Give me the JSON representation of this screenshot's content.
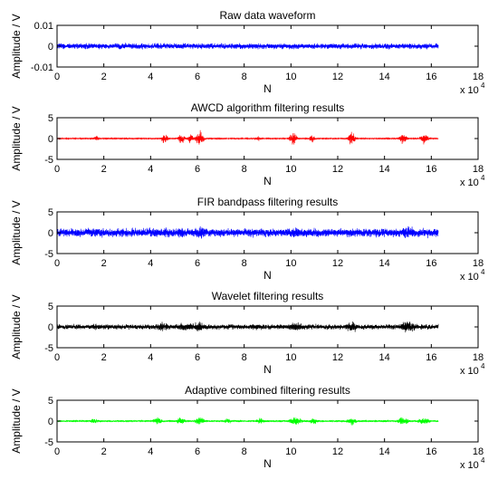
{
  "figure": {
    "x_exponent_base": "x 10",
    "x_exponent_power": "4"
  },
  "chart_data": [
    {
      "type": "line",
      "title": "Raw data waveform",
      "xlabel": "N",
      "ylabel": "Amplitude / V",
      "xlim": [
        0,
        18
      ],
      "ylim": [
        -0.01,
        0.01
      ],
      "xticks": [
        "0",
        "2",
        "4",
        "6",
        "8",
        "10",
        "12",
        "14",
        "16",
        "18"
      ],
      "yticks": [
        {
          "v": 0.01,
          "t": "0.01"
        },
        {
          "v": 0,
          "t": "0"
        },
        {
          "v": -0.01,
          "t": "-0.01"
        }
      ],
      "color": "#0000ff",
      "data_x_range": [
        0,
        16.3
      ],
      "base_amplitude": 0.0018,
      "noise": 0.0004,
      "bursts": [
        {
          "center": 1.6,
          "width": 0.35,
          "amp": 0.0012
        },
        {
          "center": 4.3,
          "width": 0.3,
          "amp": 0.0012
        },
        {
          "center": 5.3,
          "width": 0.3,
          "amp": 0.0014
        },
        {
          "center": 6.1,
          "width": 0.3,
          "amp": 0.0015
        },
        {
          "center": 10.2,
          "width": 0.35,
          "amp": 0.0014
        },
        {
          "center": 12.6,
          "width": 0.3,
          "amp": 0.0012
        },
        {
          "center": 15.0,
          "width": 0.4,
          "amp": 0.0018
        }
      ]
    },
    {
      "type": "line",
      "title": "AWCD algorithm filtering results",
      "xlabel": "N",
      "ylabel": "Amplitude / V",
      "xlim": [
        0,
        18
      ],
      "ylim": [
        -5,
        5
      ],
      "xticks": [
        "0",
        "2",
        "4",
        "6",
        "8",
        "10",
        "12",
        "14",
        "16",
        "18"
      ],
      "yticks": [
        {
          "v": 5,
          "t": "5"
        },
        {
          "v": 0,
          "t": "0"
        },
        {
          "v": -5,
          "t": "-5"
        }
      ],
      "color": "#ff0000",
      "data_x_range": [
        0,
        16.3
      ],
      "base_amplitude": 0.15,
      "noise": 0.05,
      "bursts": [
        {
          "center": 1.7,
          "width": 0.12,
          "amp": 1.0
        },
        {
          "center": 4.6,
          "width": 0.15,
          "amp": 1.6
        },
        {
          "center": 5.3,
          "width": 0.15,
          "amp": 1.7
        },
        {
          "center": 5.7,
          "width": 0.12,
          "amp": 1.5
        },
        {
          "center": 6.1,
          "width": 0.17,
          "amp": 2.6
        },
        {
          "center": 8.6,
          "width": 0.12,
          "amp": 0.9
        },
        {
          "center": 10.1,
          "width": 0.17,
          "amp": 2.0
        },
        {
          "center": 10.9,
          "width": 0.12,
          "amp": 1.4
        },
        {
          "center": 12.6,
          "width": 0.15,
          "amp": 2.4
        },
        {
          "center": 14.8,
          "width": 0.17,
          "amp": 1.8
        },
        {
          "center": 15.7,
          "width": 0.17,
          "amp": 2.0
        }
      ]
    },
    {
      "type": "line",
      "title": "FIR bandpass filtering results",
      "xlabel": "N",
      "ylabel": "Amplitude / V",
      "xlim": [
        0,
        18
      ],
      "ylim": [
        -5,
        5
      ],
      "xticks": [
        "0",
        "2",
        "4",
        "6",
        "8",
        "10",
        "12",
        "14",
        "16",
        "18"
      ],
      "yticks": [
        {
          "v": 5,
          "t": "5"
        },
        {
          "v": 0,
          "t": "0"
        },
        {
          "v": -5,
          "t": "-5"
        }
      ],
      "color": "#0000ff",
      "data_x_range": [
        0,
        16.3
      ],
      "base_amplitude": 1.2,
      "noise": 0.5,
      "bursts": [
        {
          "center": 1.6,
          "width": 0.3,
          "amp": 1.2
        },
        {
          "center": 4.3,
          "width": 0.3,
          "amp": 1.3
        },
        {
          "center": 5.3,
          "width": 0.3,
          "amp": 1.5
        },
        {
          "center": 6.1,
          "width": 0.3,
          "amp": 1.8
        },
        {
          "center": 10.2,
          "width": 0.35,
          "amp": 1.5
        },
        {
          "center": 12.6,
          "width": 0.3,
          "amp": 1.3
        },
        {
          "center": 15.0,
          "width": 0.4,
          "amp": 1.8
        }
      ]
    },
    {
      "type": "line",
      "title": "Wavelet filtering results",
      "xlabel": "N",
      "ylabel": "Amplitude / V",
      "xlim": [
        0,
        18
      ],
      "ylim": [
        -5,
        5
      ],
      "xticks": [
        "0",
        "2",
        "4",
        "6",
        "8",
        "10",
        "12",
        "14",
        "16",
        "18"
      ],
      "yticks": [
        {
          "v": 5,
          "t": "5"
        },
        {
          "v": 0,
          "t": "0"
        },
        {
          "v": -5,
          "t": "-5"
        }
      ],
      "color": "#000000",
      "data_x_range": [
        0,
        16.3
      ],
      "base_amplitude": 0.7,
      "noise": 0.3,
      "bursts": [
        {
          "center": 1.6,
          "width": 0.3,
          "amp": 0.9
        },
        {
          "center": 4.5,
          "width": 0.35,
          "amp": 1.3
        },
        {
          "center": 5.4,
          "width": 0.35,
          "amp": 1.3
        },
        {
          "center": 6.1,
          "width": 0.3,
          "amp": 1.5
        },
        {
          "center": 8.5,
          "width": 0.3,
          "amp": 1.0
        },
        {
          "center": 10.2,
          "width": 0.35,
          "amp": 1.4
        },
        {
          "center": 12.6,
          "width": 0.3,
          "amp": 1.8
        },
        {
          "center": 15.0,
          "width": 0.4,
          "amp": 1.8
        }
      ]
    },
    {
      "type": "line",
      "title": "Adaptive combined filtering results",
      "xlabel": "N",
      "ylabel": "Amplitude / V",
      "xlim": [
        0,
        18
      ],
      "ylim": [
        -5,
        5
      ],
      "xticks": [
        "0",
        "2",
        "4",
        "6",
        "8",
        "10",
        "12",
        "14",
        "16",
        "18"
      ],
      "yticks": [
        {
          "v": 5,
          "t": "5"
        },
        {
          "v": 0,
          "t": "0"
        },
        {
          "v": -5,
          "t": "-5"
        }
      ],
      "color": "#00ff00",
      "data_x_range": [
        0,
        16.3
      ],
      "base_amplitude": 0.25,
      "noise": 0.1,
      "bursts": [
        {
          "center": 1.6,
          "width": 0.2,
          "amp": 0.9
        },
        {
          "center": 4.3,
          "width": 0.2,
          "amp": 1.2
        },
        {
          "center": 5.3,
          "width": 0.2,
          "amp": 1.3
        },
        {
          "center": 6.1,
          "width": 0.2,
          "amp": 1.6
        },
        {
          "center": 7.3,
          "width": 0.15,
          "amp": 1.0
        },
        {
          "center": 8.7,
          "width": 0.2,
          "amp": 1.0
        },
        {
          "center": 10.2,
          "width": 0.25,
          "amp": 1.6
        },
        {
          "center": 11.0,
          "width": 0.2,
          "amp": 1.1
        },
        {
          "center": 12.6,
          "width": 0.2,
          "amp": 1.4
        },
        {
          "center": 14.8,
          "width": 0.25,
          "amp": 1.5
        },
        {
          "center": 15.7,
          "width": 0.25,
          "amp": 1.4
        }
      ]
    }
  ]
}
